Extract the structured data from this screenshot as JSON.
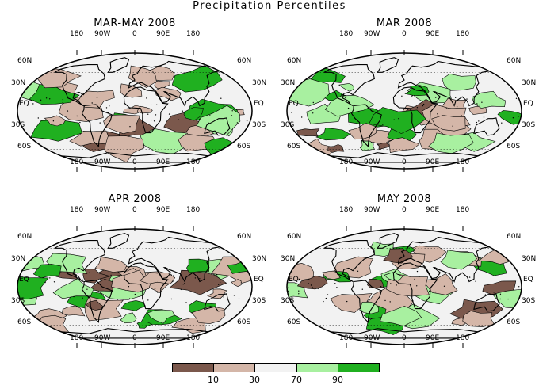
{
  "title": "Precipitation Percentiles",
  "colors": {
    "below10": "#7b584c",
    "10to30": "#d4b6a8",
    "30to70": "#f2f2f2",
    "70to90": "#a8f0a0",
    "above90": "#20b020"
  },
  "axis_labels": {
    "lon": [
      "180",
      "90W",
      "0",
      "90E",
      "180"
    ],
    "lat_left": [
      "60N",
      "30N",
      "EQ",
      "30S",
      "60S"
    ],
    "lat_right": [
      "60N",
      "30N",
      "EQ",
      "30S",
      "60S"
    ]
  },
  "panels": [
    {
      "title": "MAR-MAY 2008",
      "lat_labels": [
        "60N",
        "30N",
        "EQ",
        "30S",
        "60S"
      ]
    },
    {
      "title": "MAR 2008",
      "lat_labels": [
        "60N",
        "30N",
        "EQ",
        "30S",
        "60S"
      ]
    },
    {
      "title": "APR 2008",
      "lat_labels": [
        "60N",
        "30N",
        "EQ",
        "30S",
        "60S"
      ]
    },
    {
      "title": "MAY 2008",
      "lat_labels": [
        "60N",
        "30N",
        "EQ",
        "30S",
        "60S"
      ]
    }
  ],
  "legend": {
    "ticks": [
      "10",
      "30",
      "70",
      "90"
    ]
  }
}
